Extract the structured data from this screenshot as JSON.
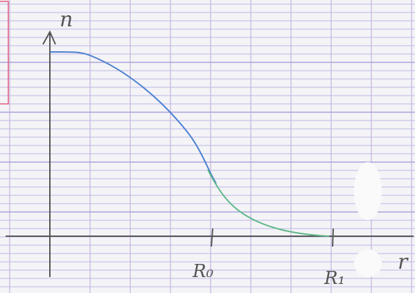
{
  "axes": {
    "y_label": "n",
    "x_label": "r"
  },
  "ticks": [
    {
      "label": "R₀"
    },
    {
      "label": "R₁"
    }
  ]
}
